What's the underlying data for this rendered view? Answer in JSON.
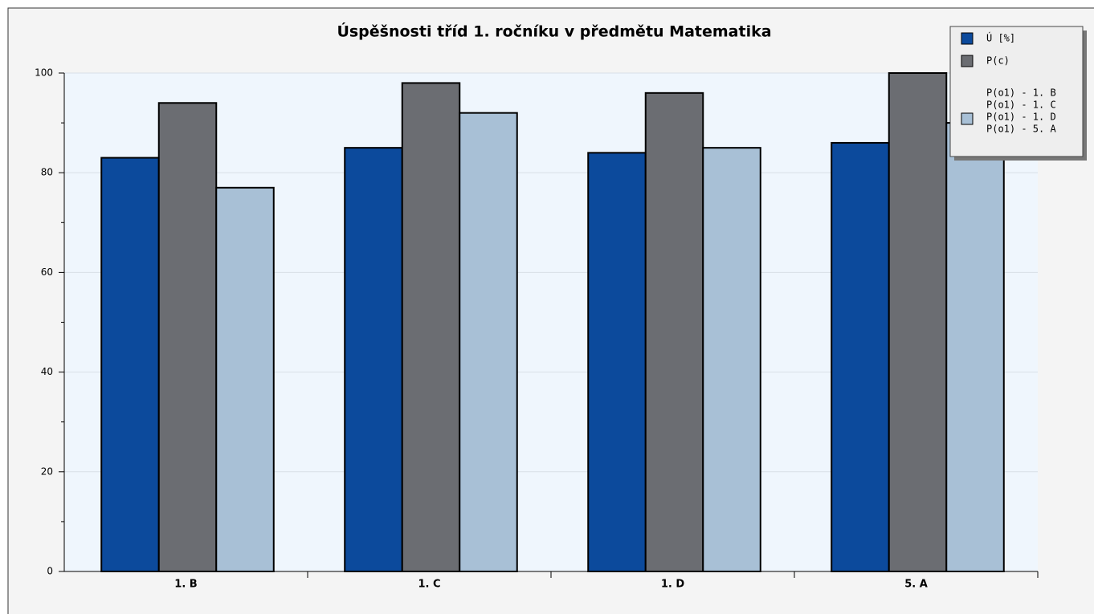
{
  "chart_data": {
    "type": "bar",
    "title": "Úspěšnosti tříd 1. ročníku v předmětu Matematika",
    "categories": [
      "1. B",
      "1. C",
      "1. D",
      "5. A"
    ],
    "series": [
      {
        "name": "Ú [%]",
        "color": "#0c4a9c",
        "values": [
          83,
          85,
          84,
          86
        ]
      },
      {
        "name": "P(c)",
        "color": "#6b6d72",
        "values": [
          94,
          98,
          96,
          100
        ]
      },
      {
        "name": [
          "P(o1) - 1. B",
          "P(o1) - 1. C",
          "P(o1) - 1. D",
          "P(o1) - 5. A"
        ],
        "color": "#a8c0d6",
        "values": [
          77,
          92,
          85,
          90
        ]
      }
    ],
    "ylim": [
      0,
      100
    ],
    "yticks": [
      0,
      20,
      40,
      60,
      80,
      100
    ],
    "grid": true,
    "legend": "top-right"
  }
}
